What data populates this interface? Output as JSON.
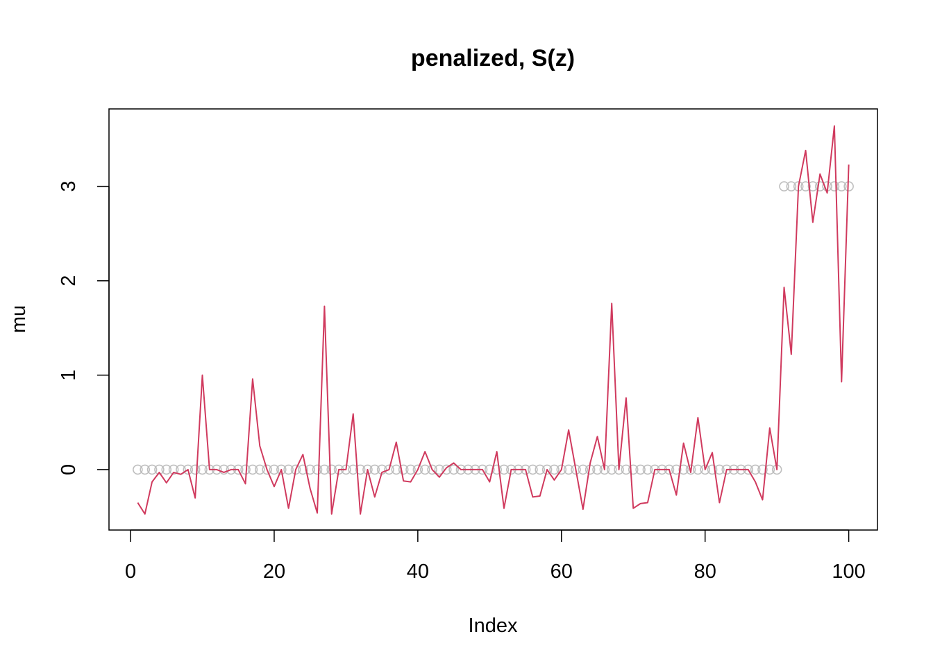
{
  "chart_data": {
    "type": "scatter",
    "title": "penalized, S(z)",
    "xlabel": "Index",
    "ylabel": "mu",
    "xlim": [
      -3,
      104
    ],
    "ylim": [
      -0.64,
      3.82
    ],
    "x_ticks": [
      0,
      20,
      40,
      60,
      80,
      100
    ],
    "x_tick_labels": [
      "0",
      "20",
      "40",
      "60",
      "80",
      "100"
    ],
    "y_ticks": [
      0,
      1,
      2,
      3
    ],
    "y_tick_labels": [
      "0",
      "1",
      "2",
      "3"
    ],
    "grid": false,
    "legend": "none",
    "x": [
      1,
      2,
      3,
      4,
      5,
      6,
      7,
      8,
      9,
      10,
      11,
      12,
      13,
      14,
      15,
      16,
      17,
      18,
      19,
      20,
      21,
      22,
      23,
      24,
      25,
      26,
      27,
      28,
      29,
      30,
      31,
      32,
      33,
      34,
      35,
      36,
      37,
      38,
      39,
      40,
      41,
      42,
      43,
      44,
      45,
      46,
      47,
      48,
      49,
      50,
      51,
      52,
      53,
      54,
      55,
      56,
      57,
      58,
      59,
      60,
      61,
      62,
      63,
      64,
      65,
      66,
      67,
      68,
      69,
      70,
      71,
      72,
      73,
      74,
      75,
      76,
      77,
      78,
      79,
      80,
      81,
      82,
      83,
      84,
      85,
      86,
      87,
      88,
      89,
      90,
      91,
      92,
      93,
      94,
      95,
      96,
      97,
      98,
      99,
      100
    ],
    "series": [
      {
        "style": "points",
        "color": "#bebebe",
        "values": [
          0,
          0,
          0,
          0,
          0,
          0,
          0,
          0,
          0,
          0,
          0,
          0,
          0,
          0,
          0,
          0,
          0,
          0,
          0,
          0,
          0,
          0,
          0,
          0,
          0,
          0,
          0,
          0,
          0,
          0,
          0,
          0,
          0,
          0,
          0,
          0,
          0,
          0,
          0,
          0,
          0,
          0,
          0,
          0,
          0,
          0,
          0,
          0,
          0,
          0,
          0,
          0,
          0,
          0,
          0,
          0,
          0,
          0,
          0,
          0,
          0,
          0,
          0,
          0,
          0,
          0,
          0,
          0,
          0,
          0,
          0,
          0,
          0,
          0,
          0,
          0,
          0,
          0,
          0,
          0,
          0,
          0,
          0,
          0,
          0,
          0,
          0,
          0,
          0,
          0,
          3,
          3,
          3,
          3,
          3,
          3,
          3,
          3,
          3,
          3
        ]
      },
      {
        "style": "line",
        "color": "#d03a5e",
        "values": [
          -0.35,
          -0.47,
          -0.13,
          -0.03,
          -0.14,
          -0.03,
          -0.05,
          0.0,
          -0.3,
          1.0,
          0.0,
          0.0,
          -0.03,
          0.0,
          0.0,
          -0.15,
          0.96,
          0.25,
          0.0,
          -0.18,
          0.0,
          -0.41,
          0.0,
          0.16,
          -0.2,
          -0.46,
          1.73,
          -0.47,
          0.0,
          0.0,
          0.59,
          -0.47,
          0.0,
          -0.29,
          -0.03,
          0.0,
          0.29,
          -0.12,
          -0.13,
          0.0,
          0.19,
          0.0,
          -0.08,
          0.02,
          0.07,
          0.0,
          0.0,
          0.0,
          0.0,
          -0.13,
          0.19,
          -0.41,
          0.0,
          0.0,
          0.0,
          -0.29,
          -0.28,
          0.0,
          -0.11,
          0.0,
          0.42,
          0.0,
          -0.42,
          0.07,
          0.35,
          0.0,
          1.76,
          0.0,
          0.76,
          -0.41,
          -0.36,
          -0.35,
          0.0,
          0.0,
          0.0,
          -0.27,
          0.28,
          -0.03,
          0.55,
          0.0,
          0.18,
          -0.35,
          0.0,
          0.0,
          0.0,
          0.0,
          -0.13,
          -0.32,
          0.44,
          0.0,
          1.93,
          1.22,
          3.0,
          3.38,
          2.62,
          3.13,
          2.93,
          3.64,
          0.93,
          3.23
        ]
      }
    ]
  }
}
